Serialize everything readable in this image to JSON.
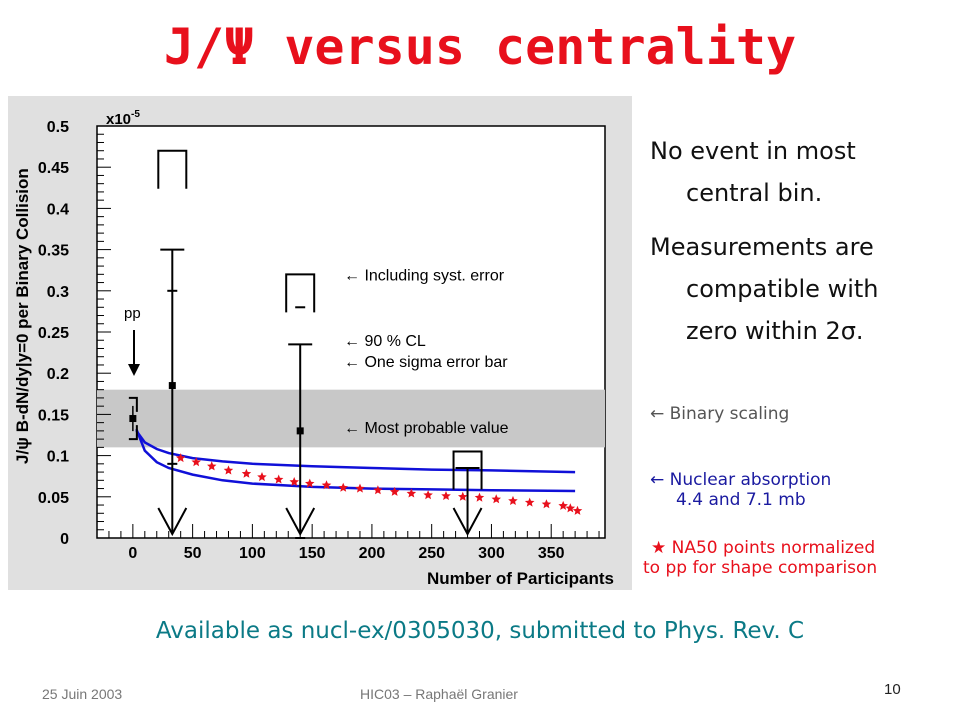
{
  "slide": {
    "title": "J/Ψ versus centrality",
    "side_text": {
      "p1_line1": "No event in most",
      "p1_line2": "central bin.",
      "p2_line1": "Measurements are",
      "p2_line2": "compatible with",
      "p2_line3": "zero within 2σ."
    },
    "legend": {
      "binary": "← Binary scaling",
      "nuclear1": "← Nuclear absorption",
      "nuclear2": "4.4 and 7.1 mb",
      "na50_1": "★ NA50 points normalized",
      "na50_2": "to pp for shape comparison"
    },
    "available": "Available as nucl-ex/0305030, submitted to Phys. Rev. C",
    "footer": {
      "date": "25 Juin 2003",
      "center": "HIC03 – Raphaël Granier",
      "page": "10"
    },
    "colors": {
      "title": "#e8101c",
      "curves": "#1010d8",
      "na50": "#e8101c",
      "band": "#c8c8c8",
      "available": "#0b7a86"
    }
  },
  "chart_data": {
    "type": "scatter",
    "xlabel": "Number of Participants",
    "ylabel": "J/ψ B-dN/dy|y=0 per Binary Collision",
    "y_multiplier_label": "x10",
    "y_multiplier_exp": "-5",
    "xlim": [
      -30,
      395
    ],
    "ylim": [
      0,
      0.5
    ],
    "x_ticks": [
      0,
      50,
      100,
      150,
      200,
      250,
      300,
      350
    ],
    "x_tick_labels": [
      "0",
      "50",
      "100",
      "150",
      "200",
      "250",
      "300",
      "350"
    ],
    "y_ticks": [
      0,
      0.05,
      0.1,
      0.15,
      0.2,
      0.25,
      0.3,
      0.35,
      0.4,
      0.45,
      0.5
    ],
    "y_tick_labels": [
      "0",
      "0.05",
      "0.1",
      "0.15",
      "0.2",
      "0.25",
      "0.3",
      "0.35",
      "0.4",
      "0.45",
      "0.5"
    ],
    "pp_label": "pp",
    "pp_point": {
      "x": 0,
      "y": 0.145,
      "syst_low": 0.12,
      "syst_high": 0.17,
      "band_low": 0.11,
      "band_high": 0.18
    },
    "measurements": [
      {
        "x": 33,
        "y": 0.185,
        "sigma_low": 0.09,
        "sigma_high": 0.3,
        "cl90": 0.35,
        "syst": 0.47
      },
      {
        "x": 140,
        "y": 0.13,
        "sigma_low": 0.0,
        "sigma_high": 0.28,
        "cl90": 0.235,
        "syst": 0.32
      },
      {
        "x": 280,
        "cl90": 0.085,
        "syst": 0.105
      }
    ],
    "annotations": [
      {
        "text": "← Including syst. error",
        "y": 0.32
      },
      {
        "text": "← 90 % CL",
        "y": 0.24
      },
      {
        "text": "← One sigma error bar",
        "y": 0.215
      },
      {
        "text": "← Most probable value",
        "y": 0.135
      }
    ],
    "curves": [
      {
        "name": "Nuclear absorption 4.4 mb",
        "x": [
          3,
          10,
          20,
          30,
          50,
          75,
          100,
          150,
          200,
          250,
          300,
          370
        ],
        "y": [
          0.13,
          0.116,
          0.108,
          0.103,
          0.097,
          0.093,
          0.09,
          0.087,
          0.085,
          0.083,
          0.082,
          0.08
        ]
      },
      {
        "name": "Nuclear absorption 7.1 mb",
        "x": [
          3,
          10,
          20,
          30,
          50,
          75,
          100,
          150,
          200,
          250,
          300,
          370
        ],
        "y": [
          0.132,
          0.106,
          0.092,
          0.085,
          0.077,
          0.07,
          0.066,
          0.062,
          0.06,
          0.059,
          0.058,
          0.057
        ]
      },
      {
        "name": "Binary scaling band",
        "x": [
          -30,
          380
        ],
        "y": [
          0.18,
          0.18
        ]
      }
    ],
    "na50": {
      "x": [
        40,
        53,
        66,
        80,
        95,
        108,
        122,
        135,
        148,
        162,
        176,
        190,
        205,
        219,
        233,
        247,
        262,
        276,
        290,
        304,
        318,
        332,
        346,
        360,
        366,
        372
      ],
      "y": [
        0.097,
        0.092,
        0.087,
        0.082,
        0.078,
        0.074,
        0.071,
        0.068,
        0.066,
        0.064,
        0.061,
        0.06,
        0.058,
        0.056,
        0.054,
        0.052,
        0.051,
        0.05,
        0.049,
        0.047,
        0.045,
        0.043,
        0.041,
        0.039,
        0.036,
        0.033
      ]
    }
  }
}
